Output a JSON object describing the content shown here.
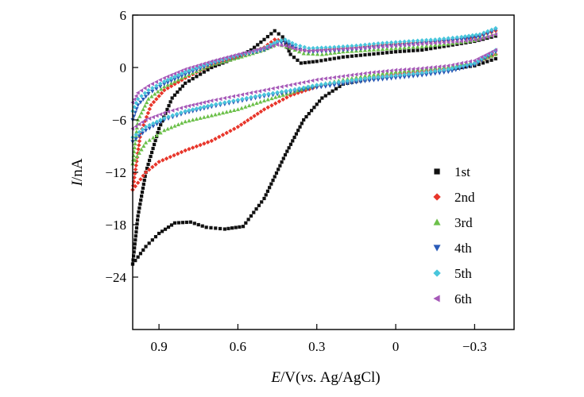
{
  "chart_data": {
    "type": "scatter",
    "title": "",
    "xlabel": {
      "var": "E",
      "rest": "/V(",
      "ref_italic": "vs.",
      "ref_tail": " Ag/AgCl)"
    },
    "ylabel": {
      "var": "I",
      "rest": "/nA"
    },
    "xlim": [
      1.0,
      -0.45
    ],
    "ylim": [
      -30,
      6
    ],
    "x_ticks": [
      0.9,
      0.6,
      0.3,
      0,
      -0.3
    ],
    "x_tick_labels": [
      "0.9",
      "0.6",
      "0.3",
      "0",
      "−0.3"
    ],
    "y_ticks": [
      6,
      0,
      -6,
      -12,
      -18,
      -24
    ],
    "y_tick_labels": [
      "6",
      "0",
      "−6",
      "−12",
      "−18",
      "−24"
    ],
    "grid": false,
    "legend_position": "bottom-right",
    "series": [
      {
        "name": "1st",
        "color": "#111111",
        "marker": "square",
        "upper": [
          [
            1.0,
            -22.5
          ],
          [
            0.98,
            -17
          ],
          [
            0.95,
            -12
          ],
          [
            0.9,
            -7
          ],
          [
            0.85,
            -3.5
          ],
          [
            0.8,
            -1.8
          ],
          [
            0.7,
            0
          ],
          [
            0.6,
            1.2
          ],
          [
            0.55,
            2
          ],
          [
            0.5,
            3.2
          ],
          [
            0.46,
            4.2
          ],
          [
            0.43,
            3.5
          ],
          [
            0.4,
            1.5
          ],
          [
            0.36,
            0.5
          ],
          [
            0.3,
            0.7
          ],
          [
            0.2,
            1.2
          ],
          [
            0.1,
            1.5
          ],
          [
            0,
            1.8
          ],
          [
            -0.1,
            2.0
          ],
          [
            -0.2,
            2.5
          ],
          [
            -0.3,
            3.0
          ],
          [
            -0.38,
            3.6
          ]
        ],
        "lower": [
          [
            -0.38,
            1.0
          ],
          [
            -0.3,
            0.2
          ],
          [
            -0.2,
            -0.2
          ],
          [
            -0.1,
            -0.6
          ],
          [
            0,
            -0.9
          ],
          [
            0.1,
            -1.3
          ],
          [
            0.2,
            -1.9
          ],
          [
            0.28,
            -3.5
          ],
          [
            0.35,
            -6
          ],
          [
            0.42,
            -10
          ],
          [
            0.5,
            -15
          ],
          [
            0.58,
            -18.2
          ],
          [
            0.65,
            -18.5
          ],
          [
            0.72,
            -18.3
          ],
          [
            0.78,
            -17.7
          ],
          [
            0.84,
            -17.8
          ],
          [
            0.9,
            -19
          ],
          [
            0.95,
            -20.5
          ],
          [
            1.0,
            -22.5
          ]
        ]
      },
      {
        "name": "2nd",
        "color": "#e8362b",
        "marker": "diamond",
        "upper": [
          [
            1.0,
            -14
          ],
          [
            0.97,
            -7.5
          ],
          [
            0.93,
            -4.3
          ],
          [
            0.88,
            -2.6
          ],
          [
            0.8,
            -1.2
          ],
          [
            0.7,
            0.3
          ],
          [
            0.6,
            1.2
          ],
          [
            0.5,
            2.3
          ],
          [
            0.46,
            3.2
          ],
          [
            0.42,
            3.0
          ],
          [
            0.38,
            2.1
          ],
          [
            0.33,
            1.9
          ],
          [
            0.25,
            2.1
          ],
          [
            0.15,
            2.3
          ],
          [
            0.05,
            2.6
          ],
          [
            0,
            2.7
          ],
          [
            -0.1,
            2.9
          ],
          [
            -0.2,
            3.1
          ],
          [
            -0.3,
            3.5
          ],
          [
            -0.38,
            4.2
          ]
        ],
        "lower": [
          [
            -0.38,
            1.5
          ],
          [
            -0.3,
            0.5
          ],
          [
            -0.2,
            -0.1
          ],
          [
            -0.1,
            -0.5
          ],
          [
            0,
            -0.8
          ],
          [
            0.1,
            -1.2
          ],
          [
            0.2,
            -1.6
          ],
          [
            0.3,
            -2.2
          ],
          [
            0.4,
            -3.2
          ],
          [
            0.5,
            -4.8
          ],
          [
            0.6,
            -6.8
          ],
          [
            0.7,
            -8.4
          ],
          [
            0.8,
            -9.5
          ],
          [
            0.9,
            -10.8
          ],
          [
            0.95,
            -12
          ],
          [
            1.0,
            -14
          ]
        ]
      },
      {
        "name": "3rd",
        "color": "#6cc04a",
        "marker": "triangle-up",
        "upper": [
          [
            1.0,
            -11
          ],
          [
            0.98,
            -6
          ],
          [
            0.94,
            -3.6
          ],
          [
            0.88,
            -2.2
          ],
          [
            0.8,
            -1.0
          ],
          [
            0.7,
            0.3
          ],
          [
            0.6,
            1.1
          ],
          [
            0.5,
            2.0
          ],
          [
            0.45,
            2.7
          ],
          [
            0.4,
            2.2
          ],
          [
            0.35,
            1.6
          ],
          [
            0.28,
            1.5
          ],
          [
            0.2,
            1.8
          ],
          [
            0.1,
            2.0
          ],
          [
            0,
            2.2
          ],
          [
            -0.1,
            2.4
          ],
          [
            -0.2,
            2.7
          ],
          [
            -0.3,
            3.1
          ],
          [
            -0.38,
            3.8
          ]
        ],
        "lower": [
          [
            -0.38,
            1.5
          ],
          [
            -0.3,
            0.6
          ],
          [
            -0.2,
            0.1
          ],
          [
            -0.1,
            -0.2
          ],
          [
            0,
            -0.5
          ],
          [
            0.1,
            -0.9
          ],
          [
            0.2,
            -1.4
          ],
          [
            0.3,
            -2.0
          ],
          [
            0.4,
            -2.9
          ],
          [
            0.5,
            -3.8
          ],
          [
            0.6,
            -4.8
          ],
          [
            0.7,
            -5.5
          ],
          [
            0.8,
            -6.2
          ],
          [
            0.88,
            -7.2
          ],
          [
            0.95,
            -8.6
          ],
          [
            1.0,
            -11
          ]
        ]
      },
      {
        "name": "4th",
        "color": "#2a5bb8",
        "marker": "triangle-down",
        "upper": [
          [
            1.0,
            -6
          ],
          [
            0.98,
            -4.3
          ],
          [
            0.94,
            -3.0
          ],
          [
            0.88,
            -1.9
          ],
          [
            0.8,
            -0.8
          ],
          [
            0.7,
            0.4
          ],
          [
            0.6,
            1.3
          ],
          [
            0.5,
            2.0
          ],
          [
            0.45,
            2.8
          ],
          [
            0.42,
            2.9
          ],
          [
            0.38,
            2.2
          ],
          [
            0.33,
            1.8
          ],
          [
            0.25,
            1.9
          ],
          [
            0.15,
            2.1
          ],
          [
            0.05,
            2.4
          ],
          [
            -0.05,
            2.6
          ],
          [
            -0.15,
            2.9
          ],
          [
            -0.25,
            3.2
          ],
          [
            -0.32,
            3.5
          ],
          [
            -0.38,
            4.3
          ]
        ],
        "lower": [
          [
            -0.38,
            1.8
          ],
          [
            -0.3,
            0.3
          ],
          [
            -0.2,
            -0.5
          ],
          [
            -0.1,
            -0.9
          ],
          [
            0,
            -1.2
          ],
          [
            0.1,
            -1.5
          ],
          [
            0.2,
            -1.9
          ],
          [
            0.3,
            -2.3
          ],
          [
            0.4,
            -2.8
          ],
          [
            0.5,
            -3.3
          ],
          [
            0.6,
            -3.9
          ],
          [
            0.7,
            -4.5
          ],
          [
            0.8,
            -5.2
          ],
          [
            0.88,
            -6.0
          ],
          [
            0.95,
            -7.2
          ],
          [
            1.0,
            -8.5
          ]
        ]
      },
      {
        "name": "5th",
        "color": "#49c6dc",
        "marker": "diamond",
        "upper": [
          [
            1.0,
            -5
          ],
          [
            0.98,
            -3.6
          ],
          [
            0.94,
            -2.6
          ],
          [
            0.88,
            -1.6
          ],
          [
            0.8,
            -0.5
          ],
          [
            0.7,
            0.6
          ],
          [
            0.6,
            1.4
          ],
          [
            0.5,
            2.2
          ],
          [
            0.45,
            3.0
          ],
          [
            0.42,
            3.2
          ],
          [
            0.38,
            2.6
          ],
          [
            0.33,
            2.2
          ],
          [
            0.25,
            2.3
          ],
          [
            0.15,
            2.5
          ],
          [
            0.05,
            2.8
          ],
          [
            -0.05,
            3.0
          ],
          [
            -0.15,
            3.2
          ],
          [
            -0.25,
            3.5
          ],
          [
            -0.32,
            3.8
          ],
          [
            -0.38,
            4.5
          ]
        ],
        "lower": [
          [
            -0.38,
            2.0
          ],
          [
            -0.3,
            0.5
          ],
          [
            -0.2,
            -0.2
          ],
          [
            -0.1,
            -0.6
          ],
          [
            0,
            -0.9
          ],
          [
            0.1,
            -1.2
          ],
          [
            0.2,
            -1.6
          ],
          [
            0.3,
            -2.0
          ],
          [
            0.4,
            -2.6
          ],
          [
            0.5,
            -3.1
          ],
          [
            0.6,
            -3.7
          ],
          [
            0.7,
            -4.3
          ],
          [
            0.8,
            -5.0
          ],
          [
            0.88,
            -5.8
          ],
          [
            0.95,
            -6.8
          ],
          [
            1.0,
            -8
          ]
        ]
      },
      {
        "name": "6th",
        "color": "#a659b8",
        "marker": "triangle-left",
        "upper": [
          [
            1.0,
            -4
          ],
          [
            0.98,
            -2.9
          ],
          [
            0.94,
            -2.1
          ],
          [
            0.88,
            -1.2
          ],
          [
            0.8,
            -0.2
          ],
          [
            0.7,
            0.7
          ],
          [
            0.6,
            1.5
          ],
          [
            0.5,
            2.2
          ],
          [
            0.45,
            2.6
          ],
          [
            0.42,
            2.5
          ],
          [
            0.38,
            2.1
          ],
          [
            0.33,
            1.9
          ],
          [
            0.25,
            2.0
          ],
          [
            0.15,
            2.2
          ],
          [
            0.05,
            2.4
          ],
          [
            -0.05,
            2.6
          ],
          [
            -0.15,
            2.8
          ],
          [
            -0.25,
            3.0
          ],
          [
            -0.32,
            3.2
          ],
          [
            -0.38,
            3.8
          ]
        ],
        "lower": [
          [
            -0.38,
            2.0
          ],
          [
            -0.3,
            0.8
          ],
          [
            -0.2,
            0.2
          ],
          [
            -0.1,
            -0.1
          ],
          [
            0,
            -0.3
          ],
          [
            0.1,
            -0.6
          ],
          [
            0.2,
            -1.0
          ],
          [
            0.3,
            -1.4
          ],
          [
            0.4,
            -2.0
          ],
          [
            0.5,
            -2.6
          ],
          [
            0.6,
            -3.2
          ],
          [
            0.7,
            -3.8
          ],
          [
            0.8,
            -4.5
          ],
          [
            0.88,
            -5.2
          ],
          [
            0.95,
            -6.0
          ],
          [
            1.0,
            -7
          ]
        ]
      }
    ]
  }
}
